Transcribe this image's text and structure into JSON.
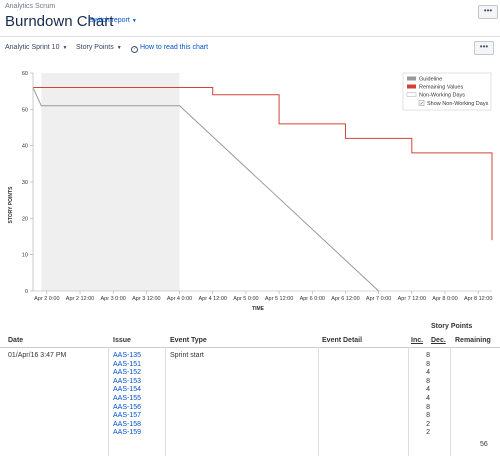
{
  "header": {
    "project": "Analytics Scrum",
    "title": "Burndown Chart",
    "switch_report": "Switch report",
    "more": "•••"
  },
  "toolbar": {
    "sprint": "Analytic Sprint 10",
    "estimate": "Story Points",
    "help": "How to read this chart",
    "more": "•••"
  },
  "chart_data": {
    "type": "line",
    "xlabel": "TIME",
    "ylabel": "STORY POINTS",
    "ylim": [
      0,
      60
    ],
    "yticks": [
      0,
      10,
      20,
      30,
      40,
      50,
      60
    ],
    "xlim": [
      "Apr 1 19:00",
      "Apr 8 17:00"
    ],
    "xticks": [
      "Apr 2 0:00",
      "Apr 2 12:00",
      "Apr 3 0:00",
      "Apr 3 12:00",
      "Apr 4 0:00",
      "Apr 4 12:00",
      "Apr 5 0:00",
      "Apr 5 12:00",
      "Apr 6 0:00",
      "Apr 6 12:00",
      "Apr 7 0:00",
      "Apr 7 12:00",
      "Apr 8 0:00",
      "Apr 8 12:00"
    ],
    "non_working_period": [
      "Apr 1 22:00",
      "Apr 4 0:00"
    ],
    "legend_position": "top-right",
    "legend": [
      "Guideline",
      "Remaining Values",
      "Non-Working Days"
    ],
    "legend_checkbox": "Show Non-Working Days",
    "series": [
      {
        "name": "Guideline",
        "color": "#999999",
        "points": [
          [
            "Apr 1 19:00",
            56
          ],
          [
            "Apr 1 22:00",
            51
          ],
          [
            "Apr 4 0:00",
            51
          ],
          [
            "Apr 7 0:00",
            0
          ]
        ]
      },
      {
        "name": "Remaining Values",
        "color": "#d04437",
        "step": true,
        "points": [
          [
            "Apr 1 19:00",
            56
          ],
          [
            "Apr 4 12:00",
            54
          ],
          [
            "Apr 5 12:00",
            46
          ],
          [
            "Apr 6 12:00",
            42
          ],
          [
            "Apr 7 12:00",
            38
          ],
          [
            "Apr 8 17:00",
            14
          ]
        ]
      }
    ]
  },
  "table": {
    "group_header": "Story Points",
    "columns": [
      "Date",
      "Issue",
      "Event Type",
      "Event Detail",
      "Inc.",
      "Dec.",
      "Remaining"
    ],
    "row": {
      "date": "01/Apr/16 3:47 PM",
      "event_type": "Sprint start",
      "issues": [
        {
          "key": "AAS-135",
          "inc": "8"
        },
        {
          "key": "AAS-151",
          "inc": "8"
        },
        {
          "key": "AAS-152",
          "inc": "4"
        },
        {
          "key": "AAS-153",
          "inc": "8"
        },
        {
          "key": "AAS-154",
          "inc": "4"
        },
        {
          "key": "AAS-155",
          "inc": "4"
        },
        {
          "key": "AAS-156",
          "inc": "8"
        },
        {
          "key": "AAS-157",
          "inc": "8"
        },
        {
          "key": "AAS-158",
          "inc": "2"
        },
        {
          "key": "AAS-159",
          "inc": "2"
        }
      ],
      "total": "56"
    }
  }
}
